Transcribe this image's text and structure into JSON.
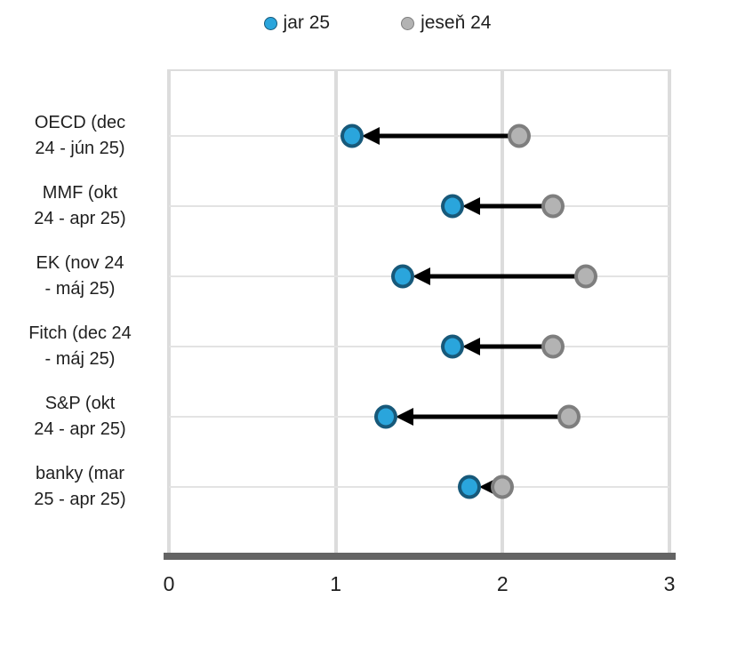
{
  "chart_data": {
    "type": "dumbbell",
    "title": "",
    "orientation": "horizontal",
    "categories": [
      "OECD (dec 24 - jún 25)",
      "MMF (okt 24 - apr 25)",
      "EK (nov 24 - máj 25)",
      "Fitch (dec 24 - máj 25)",
      "S&P (okt 24 - apr 25)",
      "banky (mar 25 - apr 25)"
    ],
    "category_label_lines": [
      [
        "OECD (dec",
        "24 - jún 25)"
      ],
      [
        "MMF (okt",
        "24 - apr 25)"
      ],
      [
        "EK (nov 24",
        "- máj 25)"
      ],
      [
        "Fitch (dec 24",
        "- máj 25)"
      ],
      [
        "S&P (okt",
        "24 - apr 25)"
      ],
      [
        "banky (mar",
        "25 - apr 25)"
      ]
    ],
    "series": [
      {
        "name": "jar 25",
        "marker_fill": "#2AA5DC",
        "marker_border": "#17597A",
        "values": [
          1.1,
          1.7,
          1.4,
          1.7,
          1.3,
          1.8
        ]
      },
      {
        "name": "jeseň 24",
        "marker_fill": "#B3B3B3",
        "marker_border": "#7E7E7E",
        "values": [
          2.1,
          2.3,
          2.5,
          2.3,
          2.4,
          2.0
        ]
      }
    ],
    "arrows": {
      "from_series": "jeseň 24",
      "to_series": "jar 25",
      "color": "#000000"
    },
    "xlabel": "",
    "ylabel": "",
    "xlim": [
      0,
      3
    ],
    "xticks": [
      "0",
      "1",
      "2",
      "3"
    ],
    "grid": true,
    "legend_position": "top",
    "gridline_color": "#DCDCDC",
    "axis_line_color": "#646464"
  }
}
